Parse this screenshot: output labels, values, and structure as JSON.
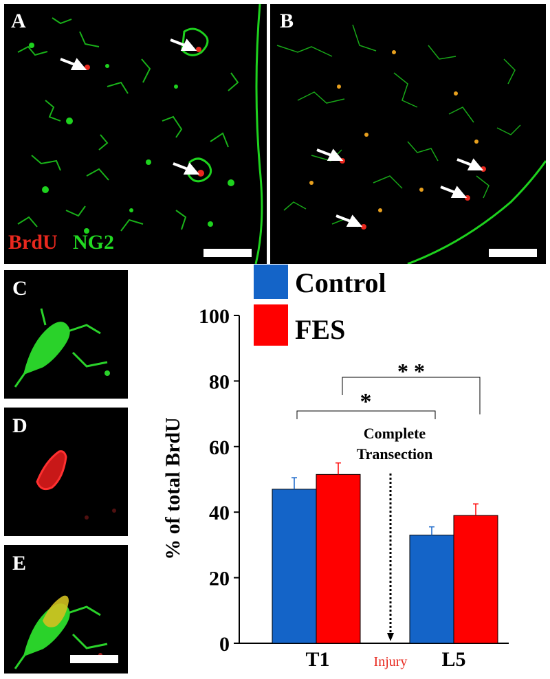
{
  "panels": {
    "a": {
      "label": "A"
    },
    "b": {
      "label": "B"
    },
    "c": {
      "label": "C"
    },
    "d": {
      "label": "D"
    },
    "e": {
      "label": "E"
    }
  },
  "stain_legend": {
    "brdu": "BrdU",
    "ng2": "NG2",
    "brdu_color": "#e8281e",
    "ng2_color": "#22d922"
  },
  "chart_data": {
    "type": "bar",
    "categories": [
      "T1",
      "L5"
    ],
    "series": [
      {
        "name": "Control",
        "color": "#1464c8",
        "values": [
          47,
          33
        ],
        "errors": [
          3.5,
          2.5
        ]
      },
      {
        "name": "FES",
        "color": "#ff0000",
        "values": [
          51.5,
          39
        ],
        "errors": [
          3.5,
          3.5
        ]
      }
    ],
    "ylabel": "% of total BrdU",
    "ylim": [
      0,
      100
    ],
    "yticks": [
      0,
      20,
      40,
      60,
      80,
      100
    ],
    "annotations": {
      "sig_short": "*",
      "sig_long": "* *",
      "transection_line1": "Complete",
      "transection_line2": "Transection",
      "injury": "Injury"
    },
    "legend_position": "top"
  }
}
